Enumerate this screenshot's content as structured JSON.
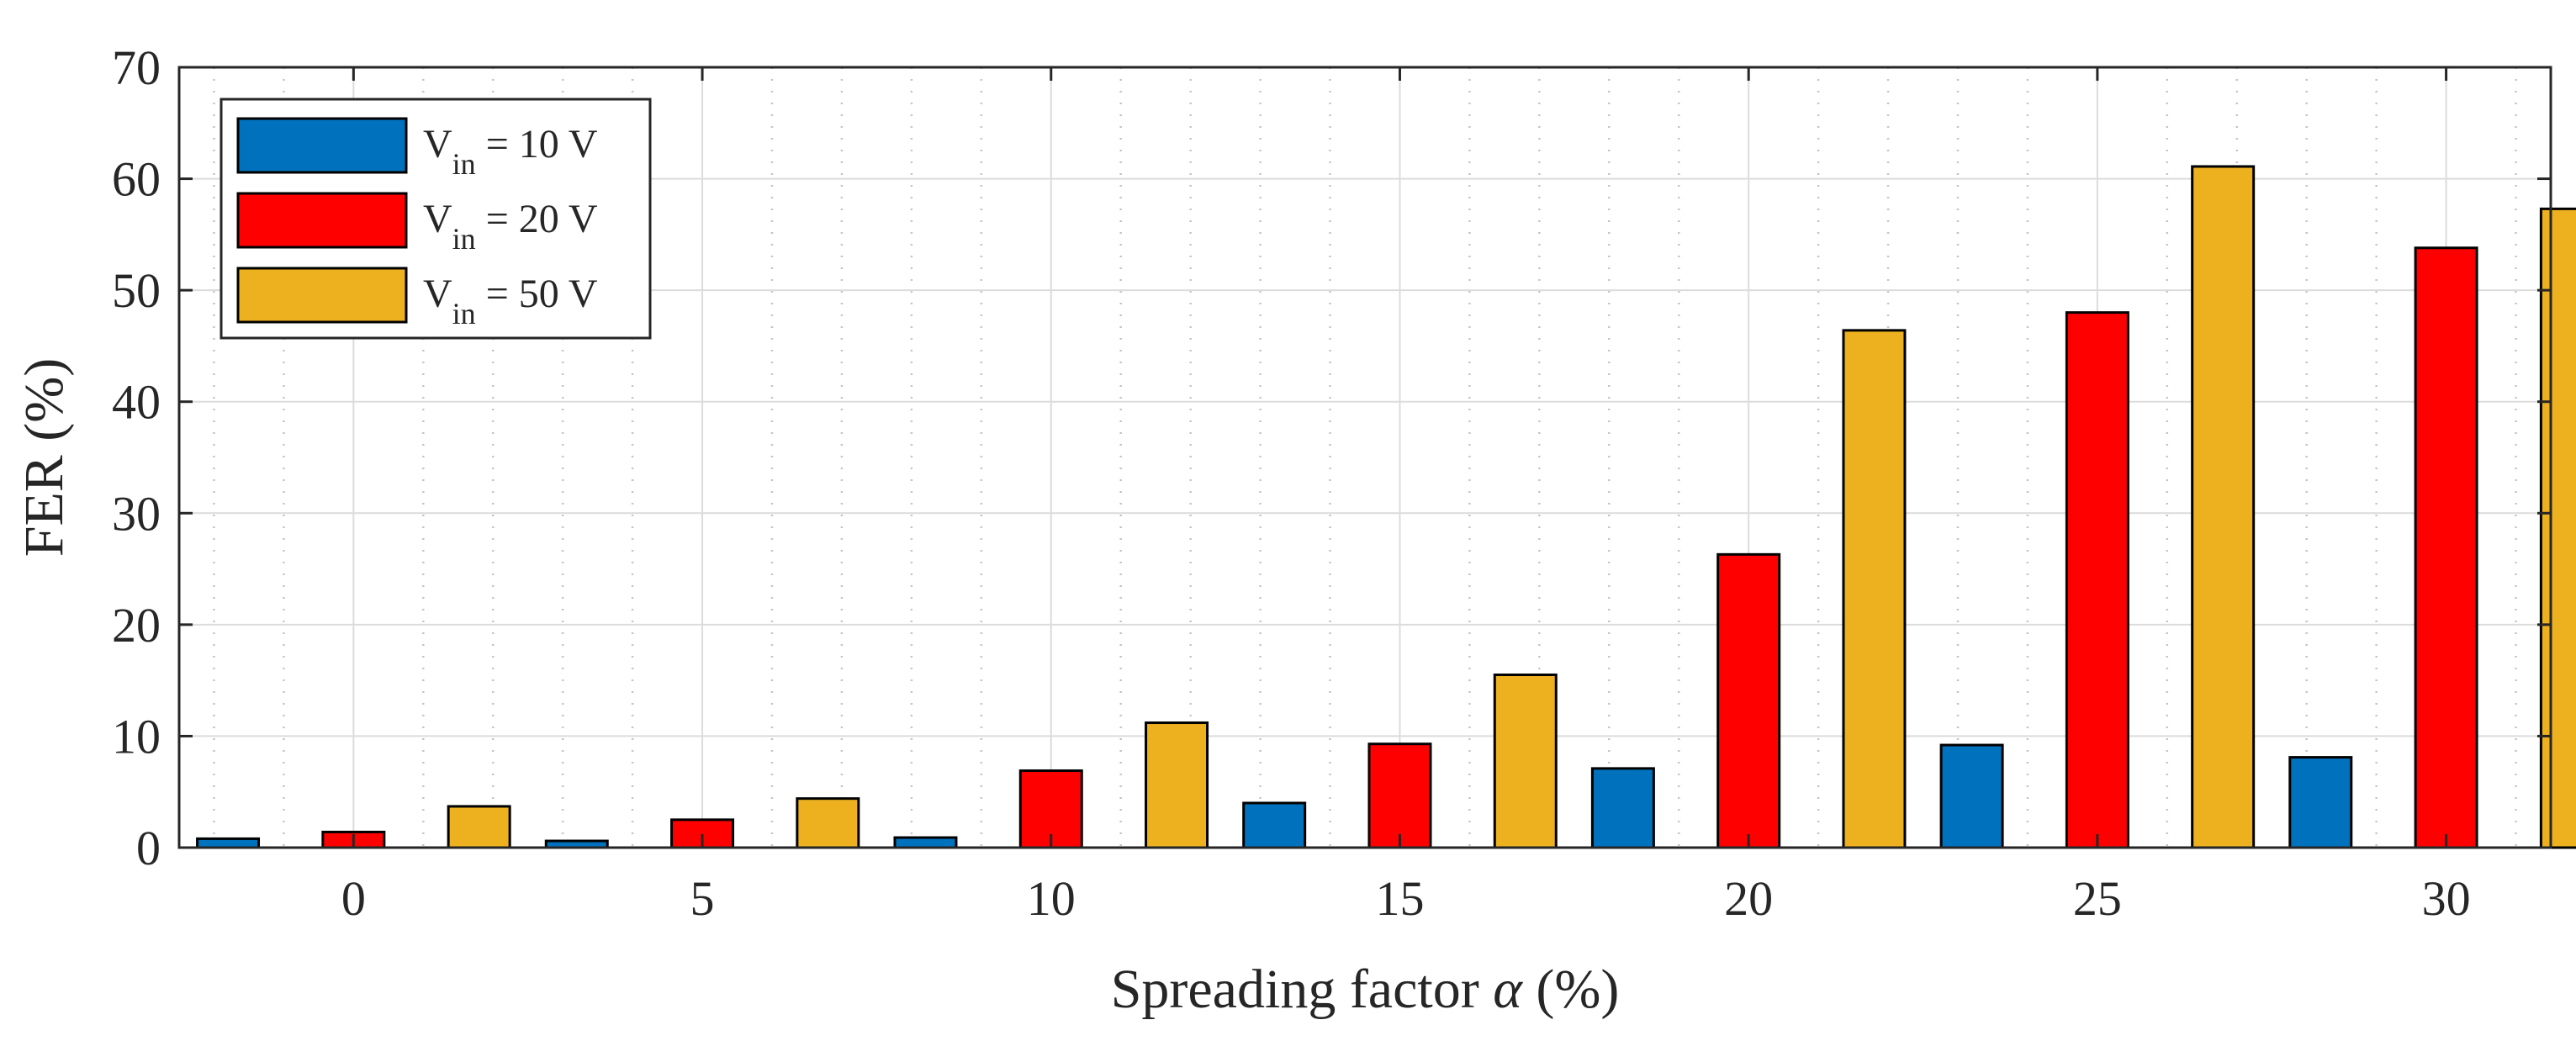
{
  "chart_data": {
    "type": "bar",
    "title": "",
    "xlabel_prefix": "Spreading factor ",
    "xlabel_symbol": "α",
    "xlabel_suffix": " (%)",
    "ylabel": "FER (%)",
    "categories": [
      "0",
      "5",
      "10",
      "15",
      "20",
      "25",
      "30"
    ],
    "x_values": [
      0,
      5,
      10,
      15,
      20,
      25,
      30
    ],
    "xlim": [
      -2.5,
      31.5
    ],
    "ylim": [
      0,
      70
    ],
    "yticks": [
      0,
      10,
      20,
      30,
      40,
      50,
      60,
      70
    ],
    "grid": true,
    "legend_position": "top-left",
    "series": [
      {
        "name": "V_in = 10 V",
        "legend_main": "V",
        "legend_sub": "in",
        "legend_rest": " = 10 V",
        "color": "#0072BD",
        "values": [
          0.8,
          0.6,
          0.9,
          4.0,
          7.1,
          9.2,
          8.1
        ]
      },
      {
        "name": "V_in = 20 V",
        "legend_main": "V",
        "legend_sub": "in",
        "legend_rest": " = 20 V",
        "color": "#FF0000",
        "values": [
          1.4,
          2.5,
          6.9,
          9.3,
          26.3,
          48.0,
          53.8
        ]
      },
      {
        "name": "V_in = 50 V",
        "legend_main": "V",
        "legend_sub": "in",
        "legend_rest": " = 50 V",
        "color": "#EDB120",
        "values": [
          3.7,
          4.4,
          11.2,
          15.5,
          46.4,
          61.1,
          57.3
        ]
      }
    ]
  }
}
